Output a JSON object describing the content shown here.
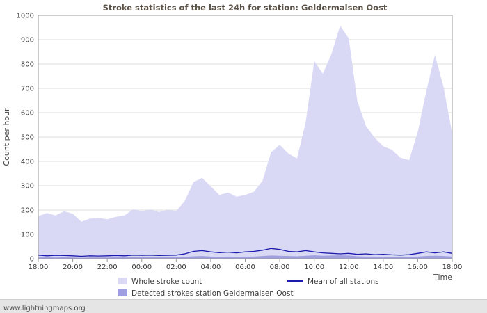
{
  "chart": {
    "title": "Stroke statistics of the last 24h for station: Geldermalsen Oost",
    "ylabel": "Count per hour",
    "xlabel": "Time"
  },
  "legend": {
    "whole_label": "Whole stroke count",
    "detected_label": "Detected strokes station Geldermalsen Oost",
    "mean_label": "Mean of all stations"
  },
  "footer": {
    "text": "www.lightningmaps.org"
  },
  "theme": {
    "whole_area_color": "#d9d9f5",
    "detected_area_color": "#9e9ee0",
    "mean_line_color": "#1a1aad",
    "grid_color": "#dcdcdc",
    "axis_color": "#9a9a9a",
    "title_color": "#5c5348",
    "tick_color": "#333333",
    "plot_bg": "#ffffff"
  },
  "chart_data": {
    "type": "area",
    "title": "Stroke statistics of the last 24h for station: Geldermalsen Oost",
    "xlabel": "Time",
    "ylabel": "Count per hour",
    "ylim": [
      0,
      1000
    ],
    "y_ticks": [
      0,
      100,
      200,
      300,
      400,
      500,
      600,
      700,
      800,
      900,
      1000
    ],
    "x_range_hours": 24,
    "x_tick_hours": [
      0,
      2,
      4,
      6,
      8,
      10,
      12,
      14,
      16,
      18,
      20,
      22,
      24
    ],
    "x_tick_labels": [
      "18:00",
      "20:00",
      "22:00",
      "00:00",
      "02:00",
      "04:00",
      "06:00",
      "08:00",
      "10:00",
      "12:00",
      "14:00",
      "16:00",
      "18:00"
    ],
    "grid": "horizontal",
    "legend_position": "bottom",
    "x_hours": [
      0,
      0.5,
      1,
      1.5,
      2,
      2.5,
      3,
      3.5,
      4,
      4.5,
      5,
      5.5,
      6,
      6.5,
      7,
      7.5,
      8,
      8.5,
      9,
      9.5,
      10,
      10.5,
      11,
      11.5,
      12,
      12.5,
      13,
      13.5,
      14,
      14.5,
      15,
      15.5,
      16,
      16.5,
      17,
      17.5,
      18,
      18.5,
      19,
      19.5,
      20,
      20.5,
      21,
      21.5,
      22,
      22.5,
      23,
      23.5,
      24
    ],
    "series": [
      {
        "name": "Whole stroke count",
        "kind": "area",
        "color_key": "whole_area_color",
        "values": [
          175,
          188,
          178,
          195,
          185,
          152,
          165,
          168,
          162,
          172,
          178,
          203,
          195,
          202,
          192,
          200,
          196,
          238,
          315,
          332,
          298,
          262,
          272,
          255,
          262,
          275,
          320,
          438,
          468,
          432,
          412,
          560,
          812,
          760,
          842,
          958,
          905,
          648,
          545,
          498,
          462,
          448,
          415,
          405,
          520,
          690,
          838,
          705,
          515
        ]
      },
      {
        "name": "Detected strokes station Geldermalsen Oost",
        "kind": "area",
        "color_key": "detected_area_color",
        "values": [
          5,
          6,
          5,
          6,
          5,
          4,
          5,
          5,
          5,
          6,
          6,
          7,
          6,
          6,
          6,
          6,
          6,
          8,
          10,
          11,
          9,
          8,
          9,
          8,
          9,
          9,
          11,
          13,
          12,
          11,
          10,
          12,
          14,
          12,
          13,
          14,
          13,
          10,
          9,
          9,
          8,
          8,
          8,
          8,
          9,
          11,
          12,
          11,
          9
        ]
      },
      {
        "name": "Mean of all stations",
        "kind": "line",
        "color_key": "mean_line_color",
        "values": [
          15,
          12,
          14,
          13,
          12,
          10,
          12,
          11,
          12,
          13,
          12,
          15,
          14,
          15,
          13,
          14,
          15,
          20,
          30,
          33,
          28,
          25,
          27,
          24,
          28,
          30,
          35,
          42,
          38,
          30,
          28,
          33,
          28,
          24,
          22,
          20,
          22,
          18,
          20,
          17,
          18,
          16,
          15,
          17,
          22,
          28,
          24,
          28,
          22
        ]
      }
    ]
  }
}
